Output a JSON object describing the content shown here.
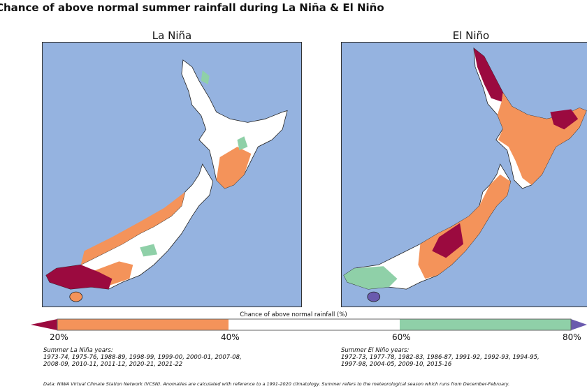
{
  "title": "Chance of above normal summer rainfall during La Niña & El Niño",
  "panels": [
    {
      "title": "La Niña"
    },
    {
      "title": "El Niño"
    }
  ],
  "colorbar": {
    "label": "Chance of above normal rainfall (%)",
    "ticks": [
      "20%",
      "40%",
      "60%",
      "80%"
    ],
    "colors": {
      "below_20": "#9b0a3f",
      "20_40": "#f4935a",
      "40_60": "#ffffff",
      "60_80": "#8fd0a8",
      "above_80": "#6a5aae",
      "ocean": "#95b3e0"
    }
  },
  "la_nina_years": {
    "heading": "Summer La Niña years:",
    "line1": "1973-74, 1975-76, 1988-89, 1998-99, 1999-00, 2000-01, 2007-08,",
    "line2": "2008-09, 2010-11, 2011-12, 2020-21, 2021-22"
  },
  "el_nino_years": {
    "heading": "Summer El Niño years:",
    "line1": "1972-73, 1977-78, 1982-83, 1986-87, 1991-92, 1992-93, 1994-95,",
    "line2": "1997-98, 2004-05, 2009-10, 2015-16"
  },
  "footer": "Data: NIWA Virtual Climate Station Network (VCSN). Anomalies are calculated with reference to a 1991-2020 climatology. Summer refers to the meteorological season which runs from December-February."
}
